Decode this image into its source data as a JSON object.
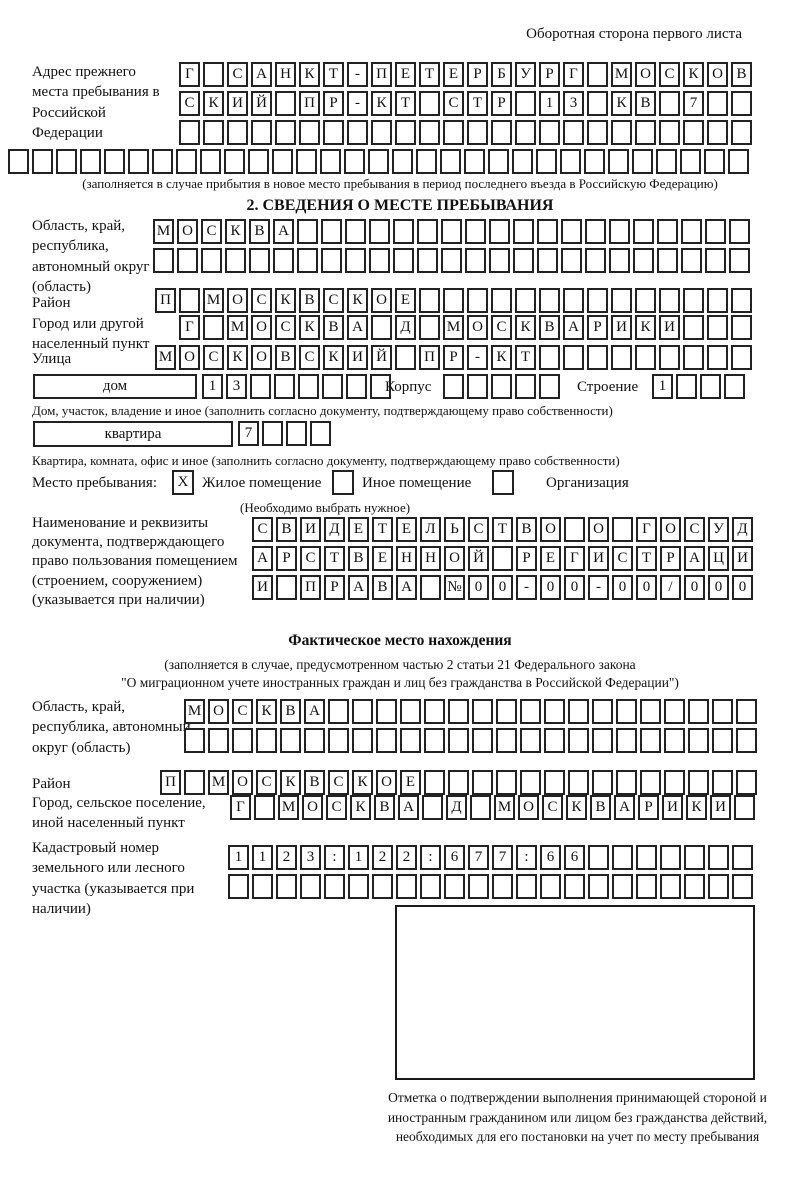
{
  "colors": {
    "ink": "#111111",
    "border": "#222222"
  },
  "header": {
    "note": "Оборотная сторона первого листа"
  },
  "section1": {
    "label": "Адрес прежнего места пребывания в Российской Федерации",
    "rows": [
      {
        "text": "Г САНКТ-ПЕТЕРБУРГ МОСКОВ",
        "cells": 24
      },
      {
        "text": "СКИЙ ПР-КТ СТР 13 КВ 7",
        "cells": 24
      },
      {
        "text": "",
        "cells": 24
      },
      {
        "text": "",
        "cells": 31
      }
    ],
    "caption": "(заполняется в случае прибытия в новое место пребывания в период последнего въезда в Российскую Федерацию)"
  },
  "section2": {
    "title": "2. СВЕДЕНИЯ О МЕСТЕ ПРЕБЫВАНИЯ",
    "region": {
      "label": "Область, край, республика, автономный округ (область)",
      "rows": [
        {
          "text": "МОСКВА",
          "cells": 25
        },
        {
          "text": "",
          "cells": 25
        }
      ]
    },
    "district": {
      "label": "Район",
      "row": {
        "text": "П МОСКВСКОЕ",
        "cells": 25
      }
    },
    "city": {
      "label": "Город или другой населенный пункт",
      "row": {
        "text": "Г МОСКВА Д МОСКВАРИКИ",
        "cells": 24
      }
    },
    "street": {
      "label": "Улица",
      "row": {
        "text": "МОСКОВСКИЙ ПР-КТ",
        "cells": 25
      }
    },
    "house": {
      "box_label": "дом",
      "row": {
        "text": "13",
        "cells": 8
      },
      "korpus_label": "Корпус",
      "korpus_row": {
        "text": "",
        "cells": 5
      },
      "stroenie_label": "Строение",
      "stroenie_row": {
        "text": "1",
        "cells": 4
      },
      "caption": "Дом, участок, владение и иное (заполнить согласно документу, подтверждающему право собственности)"
    },
    "flat": {
      "box_label": "квартира",
      "row": {
        "text": "7",
        "cells": 4
      },
      "caption": "Квартира, комната, офис и иное (заполнить согласно документу, подтверждающему право собственности)"
    },
    "occupancy": {
      "label": "Место пребывания:",
      "options": [
        {
          "label": "Жилое помещение",
          "mark": "X"
        },
        {
          "label": "Иное помещение",
          "mark": ""
        },
        {
          "label": "Организация",
          "mark": ""
        }
      ],
      "note": "(Необходимо выбрать нужное)"
    },
    "document": {
      "label": "Наименование и реквизиты документа, подтверждающего право пользования помещением (строением, сооружением) (указывается при наличии)",
      "rows": [
        {
          "text": "СВИДЕТЕЛЬСТВО О ГОСУД",
          "cells": 21
        },
        {
          "text": "АРСТВЕННОЙ РЕГИСТРАЦИ",
          "cells": 21
        },
        {
          "text": "И ПРАВА №00-00-00/000",
          "cells": 21
        }
      ]
    }
  },
  "actual": {
    "title": "Фактическое место нахождения",
    "caption_line1": "(заполняется в случае, предусмотренном частью 2 статьи 21 Федерального закона",
    "caption_line2": "\"О миграционном учете иностранных граждан и лиц без гражданства в Российской Федерации\")",
    "region": {
      "label": "Область, край, республика, автономный округ (область)",
      "rows": [
        {
          "text": "МОСКВА",
          "cells": 24
        },
        {
          "text": "",
          "cells": 24
        }
      ]
    },
    "district": {
      "label": "Район",
      "row": {
        "text": "П МОСКВСКОЕ",
        "cells": 25
      }
    },
    "city": {
      "label": "Город, сельское поселение, иной населенный пункт",
      "row": {
        "text": "Г МОСКВА Д МОСКВАРИКИ",
        "cells": 22
      }
    },
    "cadastre": {
      "label": "Кадастровый номер земельного или лесного участка (указывается при наличии)",
      "rows": [
        {
          "text": "1123:122:677:66",
          "cells": 22
        },
        {
          "text": "",
          "cells": 22
        }
      ]
    },
    "stamp_caption": "Отметка о подтверждении выполнения принимающей стороной и иностранным гражданином или лицом без гражданства действий, необходимых для его постановки на учет по месту пребывания"
  }
}
